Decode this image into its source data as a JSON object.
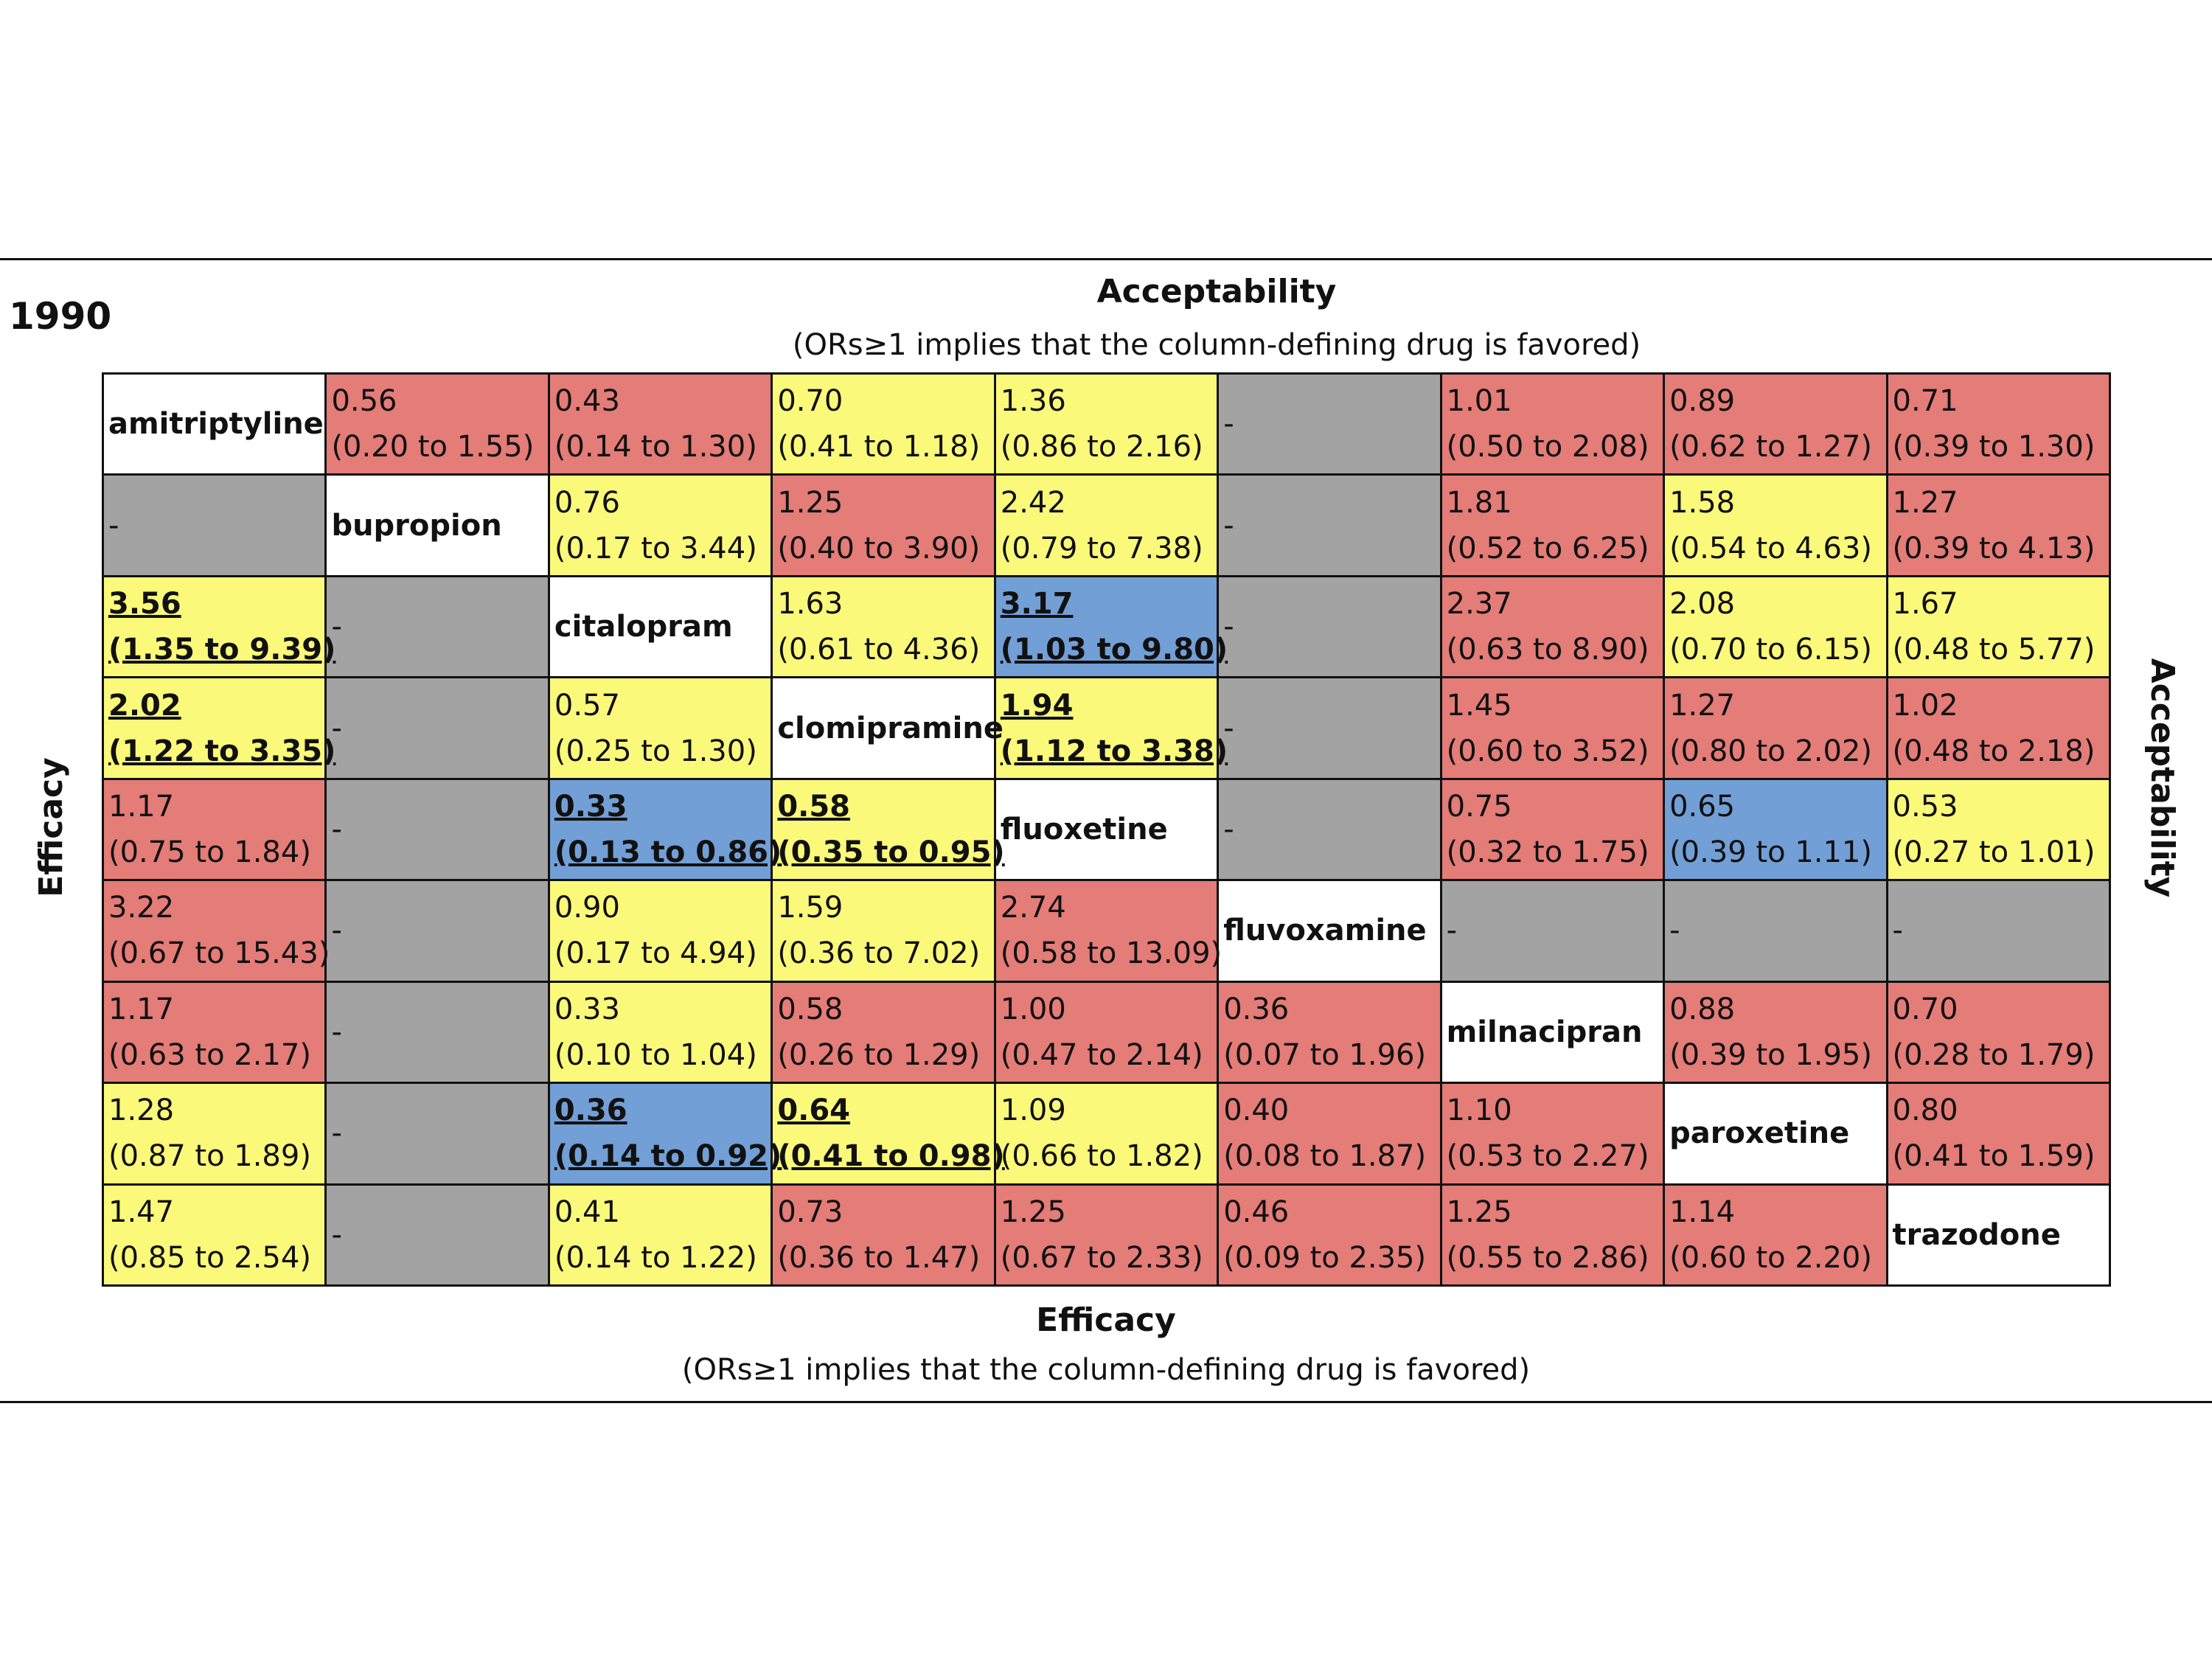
{
  "year": "1990",
  "top_axis": {
    "title": "Acceptability",
    "subtitle": "(ORs≥1 implies that the column-defining drug is favored)"
  },
  "bottom_axis": {
    "title": "Efficacy",
    "subtitle": "(ORs≥1 implies that the column-defining drug is favored)"
  },
  "left_label": "Efficacy",
  "right_label": "Acceptability",
  "colors": {
    "white": "#ffffff",
    "red": "#e47c78",
    "yellow": "#fbf97a",
    "blue": "#729fd6",
    "gray": "#a3a3a3"
  },
  "drugs": [
    "amitriptyline",
    "bupropion",
    "citalopram",
    "clomipramine",
    "fluoxetine",
    "fluvoxamine",
    "milnacipran",
    "paroxetine",
    "trazodone"
  ],
  "rows": [
    [
      {
        "diag": true,
        "text": "amitriptyline"
      },
      {
        "v": "0.56",
        "ci": "(0.20 to 1.55)",
        "color": "red"
      },
      {
        "v": "0.43",
        "ci": "(0.14 to 1.30)",
        "color": "red"
      },
      {
        "v": "0.70",
        "ci": "(0.41 to 1.18)",
        "color": "yellow"
      },
      {
        "v": "1.36",
        "ci": "(0.86 to 2.16)",
        "color": "yellow"
      },
      {
        "v": "-",
        "color": "gray"
      },
      {
        "v": "1.01",
        "ci": "(0.50 to 2.08)",
        "color": "red"
      },
      {
        "v": "0.89",
        "ci": "(0.62 to 1.27)",
        "color": "red"
      },
      {
        "v": "0.71",
        "ci": "(0.39 to 1.30)",
        "color": "red"
      }
    ],
    [
      {
        "v": "-",
        "color": "gray"
      },
      {
        "diag": true,
        "text": "bupropion"
      },
      {
        "v": "0.76",
        "ci": "(0.17 to 3.44)",
        "color": "yellow"
      },
      {
        "v": "1.25",
        "ci": "(0.40 to 3.90)",
        "color": "red"
      },
      {
        "v": "2.42",
        "ci": "(0.79 to 7.38)",
        "color": "yellow"
      },
      {
        "v": "-",
        "color": "gray"
      },
      {
        "v": "1.81",
        "ci": "(0.52 to 6.25)",
        "color": "red"
      },
      {
        "v": "1.58",
        "ci": "(0.54 to 4.63)",
        "color": "yellow"
      },
      {
        "v": "1.27",
        "ci": "(0.39 to 4.13)",
        "color": "red"
      }
    ],
    [
      {
        "v": "3.56 ",
        "ci": "(1.35 to  9.39)",
        "color": "yellow",
        "sig": true
      },
      {
        "v": "-",
        "color": "gray"
      },
      {
        "diag": true,
        "text": "citalopram"
      },
      {
        "v": "1.63",
        "ci": "(0.61 to 4.36)",
        "color": "yellow"
      },
      {
        "v": "3.17 ",
        "ci": "(1.03 to 9.80)",
        "color": "blue",
        "sig": true
      },
      {
        "v": "-",
        "color": "gray"
      },
      {
        "v": "2.37",
        "ci": "(0.63 to 8.90)",
        "color": "red"
      },
      {
        "v": "2.08",
        "ci": "(0.70 to 6.15)",
        "color": "yellow"
      },
      {
        "v": "1.67",
        "ci": "(0.48 to 5.77)",
        "color": "yellow"
      }
    ],
    [
      {
        "v": "2.02 ",
        "ci": "(1.22 to  3.35)",
        "color": "yellow",
        "sig": true
      },
      {
        "v": "-",
        "color": "gray"
      },
      {
        "v": "0.57",
        "ci": "(0.25 to  1.30)",
        "color": "yellow"
      },
      {
        "diag": true,
        "text": "clomipramine"
      },
      {
        "v": "1.94 ",
        "ci": "(1.12 to 3.38)",
        "color": "yellow",
        "sig": true
      },
      {
        "v": "-",
        "color": "gray"
      },
      {
        "v": "1.45",
        "ci": "(0.60 to 3.52)",
        "color": "red"
      },
      {
        "v": "1.27",
        "ci": "(0.80 to 2.02)",
        "color": "red"
      },
      {
        "v": "1.02",
        "ci": "(0.48 to 2.18)",
        "color": "red"
      }
    ],
    [
      {
        "v": "1.17",
        "ci": "(0.75 to  1.84)",
        "color": "red"
      },
      {
        "v": "-",
        "color": "gray"
      },
      {
        "v": "0.33 ",
        "ci": "(0.13 to  0.86)",
        "color": "blue",
        "sig": true
      },
      {
        "v": "0.58 ",
        "ci": "(0.35 to  0.95)",
        "color": "yellow",
        "sig": true
      },
      {
        "diag": true,
        "text": "fluoxetine"
      },
      {
        "v": "-",
        "color": "gray"
      },
      {
        "v": "0.75",
        "ci": "(0.32 to 1.75)",
        "color": "red"
      },
      {
        "v": "0.65",
        "ci": "(0.39 to 1.11)",
        "color": "blue"
      },
      {
        "v": "0.53",
        "ci": "(0.27 to 1.01)",
        "color": "yellow"
      }
    ],
    [
      {
        "v": "3.22",
        "ci": "(0.67 to 15.43)",
        "color": "red"
      },
      {
        "v": "-",
        "color": "gray"
      },
      {
        "v": "0.90",
        "ci": "(0.17 to  4.94)",
        "color": "yellow"
      },
      {
        "v": "1.59",
        "ci": "(0.36 to  7.02)",
        "color": "yellow"
      },
      {
        "v": "2.74",
        "ci": "(0.58 to 13.09)",
        "color": "red"
      },
      {
        "diag": true,
        "text": "fluvoxamine"
      },
      {
        "v": "-",
        "color": "gray"
      },
      {
        "v": "-",
        "color": "gray"
      },
      {
        "v": "-",
        "color": "gray"
      }
    ],
    [
      {
        "v": "1.17",
        "ci": "(0.63 to  2.17)",
        "color": "red"
      },
      {
        "v": "-",
        "color": "gray"
      },
      {
        "v": "0.33",
        "ci": "(0.10 to  1.04)",
        "color": "yellow"
      },
      {
        "v": "0.58",
        "ci": "(0.26 to  1.29)",
        "color": "red"
      },
      {
        "v": "1.00",
        "ci": "(0.47 to  2.14)",
        "color": "red"
      },
      {
        "v": "0.36",
        "ci": "(0.07 to  1.96)",
        "color": "red"
      },
      {
        "diag": true,
        "text": "milnacipran"
      },
      {
        "v": "0.88",
        "ci": "(0.39 to 1.95)",
        "color": "red"
      },
      {
        "v": "0.70",
        "ci": "(0.28 to 1.79)",
        "color": "red"
      }
    ],
    [
      {
        "v": "1.28",
        "ci": "(0.87 to  1.89)",
        "color": "yellow"
      },
      {
        "v": "-",
        "color": "gray"
      },
      {
        "v": "0.36 ",
        "ci": "(0.14 to  0.92)",
        "color": "blue",
        "sig": true
      },
      {
        "v": "0.64 ",
        "ci": "(0.41 to  0.98)",
        "color": "yellow",
        "sig": true
      },
      {
        "v": "1.09",
        "ci": "(0.66 to  1.82)",
        "color": "yellow"
      },
      {
        "v": "0.40",
        "ci": "(0.08 to  1.87)",
        "color": "red"
      },
      {
        "v": "1.10",
        "ci": "(0.53 to  2.27)",
        "color": "red"
      },
      {
        "diag": true,
        "text": "paroxetine"
      },
      {
        "v": "0.80",
        "ci": "(0.41 to 1.59)",
        "color": "red"
      }
    ],
    [
      {
        "v": "1.47",
        "ci": "(0.85 to  2.54)",
        "color": "yellow"
      },
      {
        "v": "-",
        "color": "gray"
      },
      {
        "v": "0.41",
        "ci": "(0.14 to  1.22)",
        "color": "yellow"
      },
      {
        "v": "0.73",
        "ci": "(0.36 to  1.47)",
        "color": "red"
      },
      {
        "v": "1.25",
        "ci": "(0.67 to  2.33)",
        "color": "red"
      },
      {
        "v": "0.46",
        "ci": "(0.09 to  2.35)",
        "color": "red"
      },
      {
        "v": "1.25",
        "ci": "(0.55 to  2.86)",
        "color": "red"
      },
      {
        "v": "1.14",
        "ci": "(0.60 to  2.20)",
        "color": "red"
      },
      {
        "diag": true,
        "text": "trazodone"
      }
    ]
  ]
}
